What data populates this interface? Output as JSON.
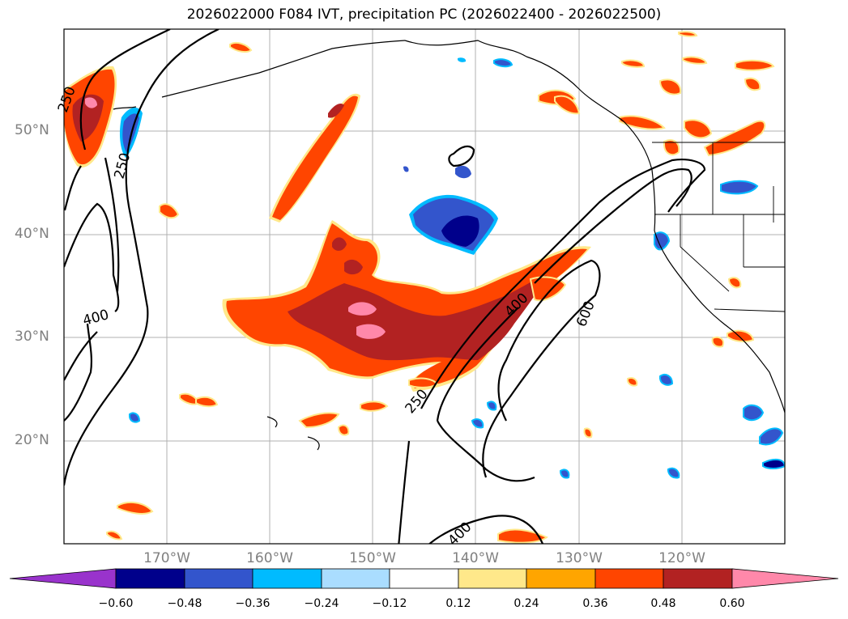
{
  "title": "2026022000 F084 IVT, precipitation PC (2026022400 - 2026022500)",
  "lat_labels": [
    "50°N",
    "40°N",
    "30°N",
    "20°N"
  ],
  "lon_labels": [
    "170°W",
    "160°W",
    "150°W",
    "140°W",
    "130°W",
    "120°W"
  ],
  "contour_labels": [
    "250",
    "250",
    "400",
    "400",
    "600",
    "250",
    "400"
  ],
  "colorbar": {
    "ticks": [
      "−0.60",
      "−0.48",
      "−0.36",
      "−0.24",
      "−0.12",
      "0.12",
      "0.24",
      "0.36",
      "0.48",
      "0.60"
    ],
    "colors": [
      "#9933cc",
      "#00008b",
      "#3355cc",
      "#00bbff",
      "#aaddff",
      "#ffffff",
      "#ffe88a",
      "#ffa500",
      "#ff4500",
      "#b22222",
      "#ff88aa"
    ]
  },
  "colors": {
    "pos_high": "#ff88aa",
    "pos_mid": "#b22222",
    "pos_low": "#ff4500",
    "pos_edge": "#ffa500",
    "pos_outer": "#ffe88a",
    "neg_light": "#00bbff",
    "neg_mid": "#3355cc",
    "neg_dark": "#00008b"
  }
}
